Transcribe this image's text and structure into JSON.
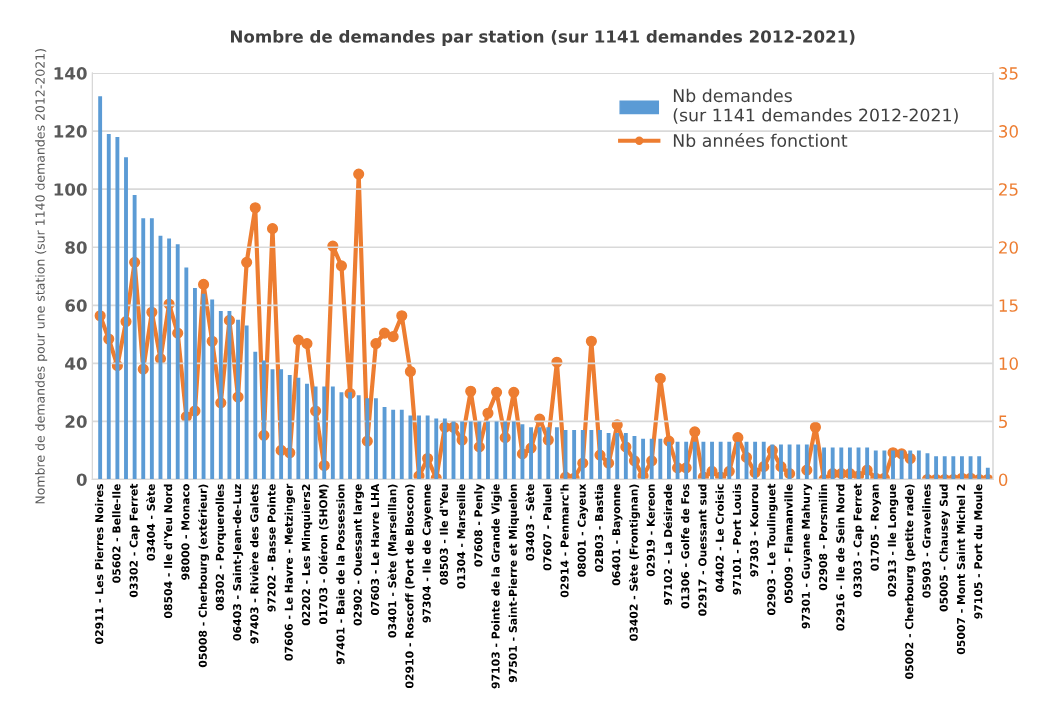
{
  "chart_data": {
    "type": "bar",
    "title": "Nombre de demandes par station (sur 1141 demandes 2012-2021)",
    "ylabel": "Nombre de demandes pour une station (sur 1140 demandes 2012-2021)",
    "categories": [
      "02911 - Les Pierres Noires",
      null,
      "05602 - Belle-Ile",
      null,
      "03302 - Cap Ferret",
      null,
      "03404 - Sète",
      null,
      "08504 - Ile d'Yeu Nord",
      null,
      "98000 - Monaco",
      null,
      "05008 - Cherbourg (extérieur)",
      null,
      "08302 - Porquerolles",
      null,
      "06403 - Saint-Jean-de-Luz",
      null,
      "97403 - Rivière des Galets",
      null,
      "97202 - Basse Pointe",
      null,
      "07606 - Le Havre - Metzinger",
      null,
      "02202 - Les Minquiers2",
      null,
      "01703 - Oléron (SHOM)",
      null,
      "97401 - Baie de la Possession",
      null,
      "02902 - Ouessant large",
      null,
      "07603 - Le Havre LHA",
      null,
      "03401 - Sète (Marseillan)",
      null,
      "02910 - Roscoff (Port de Bloscon)",
      null,
      "97304 - Ile de Cayenne",
      null,
      "08503 - Ile d'Yeu",
      null,
      "01304 - Marseille",
      null,
      "07608 - Penly",
      null,
      "97103 - Pointe de la Grande Vigie",
      null,
      "97501 - Saint-Pierre et Miquelon",
      null,
      "03403 - Sète",
      null,
      "07607 - Paluel",
      null,
      "02914 - Penmarc'h",
      null,
      "08001 - Cayeux",
      null,
      "02B03 - Bastia",
      null,
      "06401 - Bayonne",
      null,
      "03402 - Sète (Frontignan)",
      null,
      "02919 - Kereon",
      null,
      "97102 - La Désirade",
      null,
      "01306 - Golfe de Fos",
      null,
      "02917 - Ouessant sud",
      null,
      "04402 - Le Croisic",
      null,
      "97101 - Port Louis",
      null,
      "97303 - Kourou",
      null,
      "02903 - Le Toulinguet",
      null,
      "05009 - Flamanville",
      null,
      "97301 - Guyane Mahury",
      null,
      "02908 - Porsmilin",
      null,
      "02916 - Ile de Sein Nord",
      null,
      "03303 - Cap Ferret",
      null,
      "01705 - Royan",
      null,
      "02913 - Ile Longue",
      null,
      "05002 - Cherbourg (petite rade)",
      null,
      "05903 - Gravelines",
      null,
      "05005 - Chausey Sud",
      null,
      "05007 - Mont Saint Michel 2",
      null,
      "97105 - Port du Moule",
      null
    ],
    "series": [
      {
        "name": "Nb demandes\n(sur 1141 demandes 2012-2021)",
        "color": "#5b9bd5",
        "values": [
          132,
          119,
          118,
          111,
          98,
          90,
          90,
          84,
          83,
          81,
          73,
          66,
          64,
          62,
          58,
          58,
          55,
          53,
          44,
          41,
          38,
          38,
          36,
          35,
          33,
          32,
          32,
          32,
          30,
          30,
          29,
          28,
          28,
          25,
          24,
          24,
          22,
          22,
          22,
          21,
          21,
          20,
          20,
          20,
          20,
          20,
          20,
          20,
          20,
          19,
          18,
          18,
          18,
          18,
          17,
          17,
          17,
          17,
          17,
          16,
          16,
          16,
          15,
          14,
          14,
          14,
          13,
          13,
          13,
          13,
          13,
          13,
          13,
          13,
          13,
          13,
          13,
          13,
          12,
          12,
          12,
          12,
          12,
          12,
          11,
          11,
          11,
          11,
          11,
          11,
          10,
          10,
          10,
          10,
          10,
          10,
          9,
          8,
          8,
          8,
          8,
          8,
          8,
          4
        ]
      },
      {
        "name": "Nb années fonctiont",
        "type": "line",
        "axis": "y2",
        "color": "#ed7d31",
        "values": [
          14.1,
          12.1,
          9.8,
          13.6,
          18.7,
          9.5,
          14.4,
          10.4,
          15.1,
          12.6,
          5.4,
          5.9,
          16.8,
          11.9,
          6.6,
          13.7,
          7.1,
          18.7,
          23.4,
          3.8,
          21.6,
          2.5,
          2.3,
          12.0,
          11.7,
          5.9,
          1.2,
          20.1,
          18.4,
          7.4,
          26.3,
          3.3,
          11.7,
          12.6,
          12.3,
          14.1,
          9.3,
          0.3,
          1.8,
          0.1,
          4.5,
          4.5,
          3.4,
          7.6,
          2.8,
          5.7,
          7.5,
          3.6,
          7.5,
          2.2,
          2.7,
          5.2,
          3.4,
          10.1,
          0.2,
          0.1,
          1.4,
          11.9,
          2.1,
          1.4,
          4.7,
          2.8,
          1.6,
          0.3,
          1.6,
          8.7,
          3.3,
          1.0,
          1.0,
          4.1,
          0.2,
          0.7,
          0.2,
          0.7,
          3.6,
          1.9,
          0.6,
          1.1,
          2.5,
          1.1,
          0.5,
          null,
          0.8,
          4.5,
          0.0,
          0.5,
          0.5,
          0.5,
          0.3,
          0.8,
          0.1,
          0.1,
          2.3,
          2.2,
          1.8,
          null,
          0.0,
          0.0,
          0.0,
          0.0,
          0.1,
          0.1,
          0.0,
          0.0
        ]
      }
    ],
    "ylim": [
      0,
      140
    ],
    "yticks": [
      0,
      20,
      40,
      60,
      80,
      100,
      120,
      140
    ],
    "y2lim": [
      0,
      35
    ],
    "y2ticks": [
      0,
      5,
      10,
      15,
      20,
      25,
      30,
      35
    ],
    "grid": "y",
    "legend": "top right",
    "marker": "circle",
    "line_style": "solid"
  }
}
